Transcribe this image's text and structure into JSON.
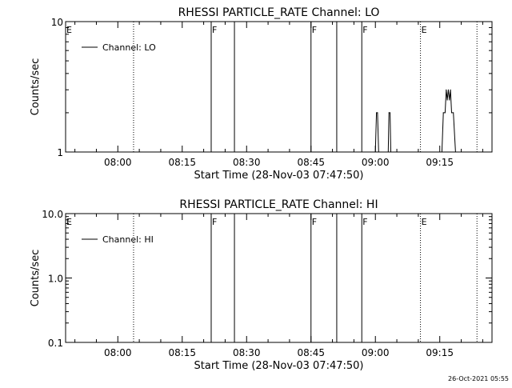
{
  "footer_timestamp": "26-Oct-2021 05:55",
  "chart_data": [
    {
      "type": "line",
      "title": "RHESSI PARTICLE_RATE Channel: LO",
      "xlabel": "Start Time (28-Nov-03 07:47:50)",
      "ylabel": "Counts/sec",
      "yscale": "log",
      "ylim": [
        1,
        10
      ],
      "xlim": [
        "07:47:50",
        "09:27:10"
      ],
      "y_ticks": [
        {
          "value": 1,
          "label": "1"
        },
        {
          "value": 10,
          "label": "10"
        }
      ],
      "x_ticks": [
        {
          "time": "08:00",
          "label": "08:00"
        },
        {
          "time": "08:15",
          "label": "08:15"
        },
        {
          "time": "08:30",
          "label": "08:30"
        },
        {
          "time": "08:45",
          "label": "08:45"
        },
        {
          "time": "09:00",
          "label": "09:00"
        },
        {
          "time": "09:15",
          "label": "09:15"
        }
      ],
      "legend": {
        "position": "top-left",
        "entries": [
          "Channel: LO"
        ]
      },
      "markers": [
        {
          "time": "07:47:50",
          "label": "E",
          "style": "solid"
        },
        {
          "time": "08:03:40",
          "label": "",
          "style": "dotted"
        },
        {
          "time": "08:21:45",
          "label": "F",
          "style": "solid"
        },
        {
          "time": "08:27:10",
          "label": "",
          "style": "solid"
        },
        {
          "time": "08:45:00",
          "label": "F",
          "style": "solid"
        },
        {
          "time": "08:51:00",
          "label": "",
          "style": "solid"
        },
        {
          "time": "08:56:50",
          "label": "F",
          "style": "solid"
        },
        {
          "time": "09:10:30",
          "label": "E",
          "style": "dotted"
        },
        {
          "time": "09:23:40",
          "label": "",
          "style": "dotted"
        }
      ],
      "series": [
        {
          "points": [
            {
              "t": "09:00:00",
              "y": 1.0
            },
            {
              "t": "09:00:15",
              "y": 2.0
            },
            {
              "t": "09:00:30",
              "y": 2.0
            },
            {
              "t": "09:00:45",
              "y": 1.0
            },
            {
              "t": "09:03:00",
              "y": 1.0
            },
            {
              "t": "09:03:10",
              "y": 2.0
            },
            {
              "t": "09:03:25",
              "y": 2.0
            },
            {
              "t": "09:03:35",
              "y": 1.0
            },
            {
              "t": "09:15:30",
              "y": 1.0
            },
            {
              "t": "09:15:50",
              "y": 2.0
            },
            {
              "t": "09:16:15",
              "y": 2.0
            },
            {
              "t": "09:16:30",
              "y": 3.0
            },
            {
              "t": "09:16:45",
              "y": 2.5
            },
            {
              "t": "09:17:00",
              "y": 3.0
            },
            {
              "t": "09:17:15",
              "y": 2.5
            },
            {
              "t": "09:17:30",
              "y": 3.0
            },
            {
              "t": "09:17:45",
              "y": 2.0
            },
            {
              "t": "09:18:10",
              "y": 2.0
            },
            {
              "t": "09:18:40",
              "y": 1.0
            }
          ]
        }
      ]
    },
    {
      "type": "line",
      "title": "RHESSI PARTICLE_RATE Channel: HI",
      "xlabel": "Start Time (28-Nov-03 07:47:50)",
      "ylabel": "Counts/sec",
      "yscale": "log",
      "ylim": [
        0.1,
        10
      ],
      "xlim": [
        "07:47:50",
        "09:27:10"
      ],
      "y_ticks": [
        {
          "value": 0.1,
          "label": "0.1"
        },
        {
          "value": 1,
          "label": "1.0"
        },
        {
          "value": 10,
          "label": "10.0"
        }
      ],
      "x_ticks": [
        {
          "time": "08:00",
          "label": "08:00"
        },
        {
          "time": "08:15",
          "label": "08:15"
        },
        {
          "time": "08:30",
          "label": "08:30"
        },
        {
          "time": "08:45",
          "label": "08:45"
        },
        {
          "time": "09:00",
          "label": "09:00"
        },
        {
          "time": "09:15",
          "label": "09:15"
        }
      ],
      "legend": {
        "position": "top-left",
        "entries": [
          "Channel: HI"
        ]
      },
      "markers": [
        {
          "time": "07:47:50",
          "label": "E",
          "style": "solid"
        },
        {
          "time": "08:03:40",
          "label": "",
          "style": "dotted"
        },
        {
          "time": "08:21:45",
          "label": "F",
          "style": "solid"
        },
        {
          "time": "08:27:10",
          "label": "",
          "style": "solid"
        },
        {
          "time": "08:45:00",
          "label": "F",
          "style": "solid"
        },
        {
          "time": "08:51:00",
          "label": "",
          "style": "solid"
        },
        {
          "time": "08:56:50",
          "label": "F",
          "style": "solid"
        },
        {
          "time": "09:10:30",
          "label": "E",
          "style": "dotted"
        },
        {
          "time": "09:23:40",
          "label": "",
          "style": "dotted"
        }
      ],
      "series": [
        {
          "points": []
        }
      ]
    }
  ]
}
